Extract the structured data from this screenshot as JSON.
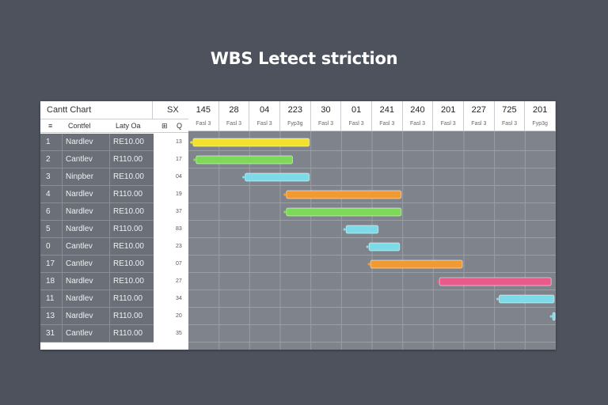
{
  "title": "WBS Letect striction",
  "grid": {
    "header_label": "Cantt Chart",
    "header_right": "SX",
    "col_headers": [
      "≡",
      "Contfel",
      "Laty Oa",
      "⊞",
      "Q"
    ]
  },
  "chart_data": {
    "type": "gantt",
    "time_columns": [
      {
        "label": "145",
        "sub": "Fasl 3"
      },
      {
        "label": "28",
        "sub": "Fasl 3"
      },
      {
        "label": "04",
        "sub": "Fasl 3"
      },
      {
        "label": "223",
        "sub": "Fyp3g"
      },
      {
        "label": "30",
        "sub": "Fasl 3"
      },
      {
        "label": "01",
        "sub": "Fasl 3"
      },
      {
        "label": "241",
        "sub": "Fasl 3"
      },
      {
        "label": "240",
        "sub": "Fasl 3"
      },
      {
        "label": "201",
        "sub": "Fasl 3"
      },
      {
        "label": "227",
        "sub": "Fasl 3"
      },
      {
        "label": "725",
        "sub": "Fasl 3"
      },
      {
        "label": "201",
        "sub": "Fyp3g"
      }
    ],
    "tasks": [
      {
        "id": "1",
        "name": "Nardlev",
        "value": "RE10.00",
        "dur": "13",
        "start": 0.15,
        "end": 3.95,
        "color": "#f2e22c"
      },
      {
        "id": "2",
        "name": "Cantlev",
        "value": "R110.00",
        "dur": "17",
        "start": 0.25,
        "end": 3.4,
        "color": "#7dd957"
      },
      {
        "id": "3",
        "name": "Ninpber",
        "value": "RE10.00",
        "dur": "04",
        "start": 1.85,
        "end": 3.95,
        "color": "#7ddbe8"
      },
      {
        "id": "4",
        "name": "Nardlev",
        "value": "R110.00",
        "dur": "19",
        "start": 3.2,
        "end": 6.95,
        "color": "#f29a32"
      },
      {
        "id": "6",
        "name": "Nardlev",
        "value": "RE10.00",
        "dur": "37",
        "start": 3.2,
        "end": 6.95,
        "color": "#7dd957"
      },
      {
        "id": "5",
        "name": "Nardlev",
        "value": "R110.00",
        "dur": "83",
        "start": 5.15,
        "end": 6.2,
        "color": "#7ddbe8"
      },
      {
        "id": "0",
        "name": "Cantlev",
        "value": "RE10.00",
        "dur": "23",
        "start": 5.9,
        "end": 6.9,
        "color": "#7ddbe8"
      },
      {
        "id": "17",
        "name": "Cantlev",
        "value": "RE10.00",
        "dur": "07",
        "start": 5.95,
        "end": 8.95,
        "color": "#f29a32"
      },
      {
        "id": "18",
        "name": "Nardlev",
        "value": "RE10.00",
        "dur": "27",
        "start": 8.2,
        "end": 11.85,
        "color": "#e9598a"
      },
      {
        "id": "11",
        "name": "Nardlev",
        "value": "R110.00",
        "dur": "34",
        "start": 10.15,
        "end": 12.0,
        "color": "#7ddbe8"
      },
      {
        "id": "13",
        "name": "Nardlev",
        "value": "R110.00",
        "dur": "20",
        "start": 11.9,
        "end": 12.0,
        "color": "#7ddbe8"
      },
      {
        "id": "31",
        "name": "Cantlev",
        "value": "R110.00",
        "dur": "35",
        "start": null,
        "end": null,
        "color": "#7ddbe8"
      }
    ]
  }
}
